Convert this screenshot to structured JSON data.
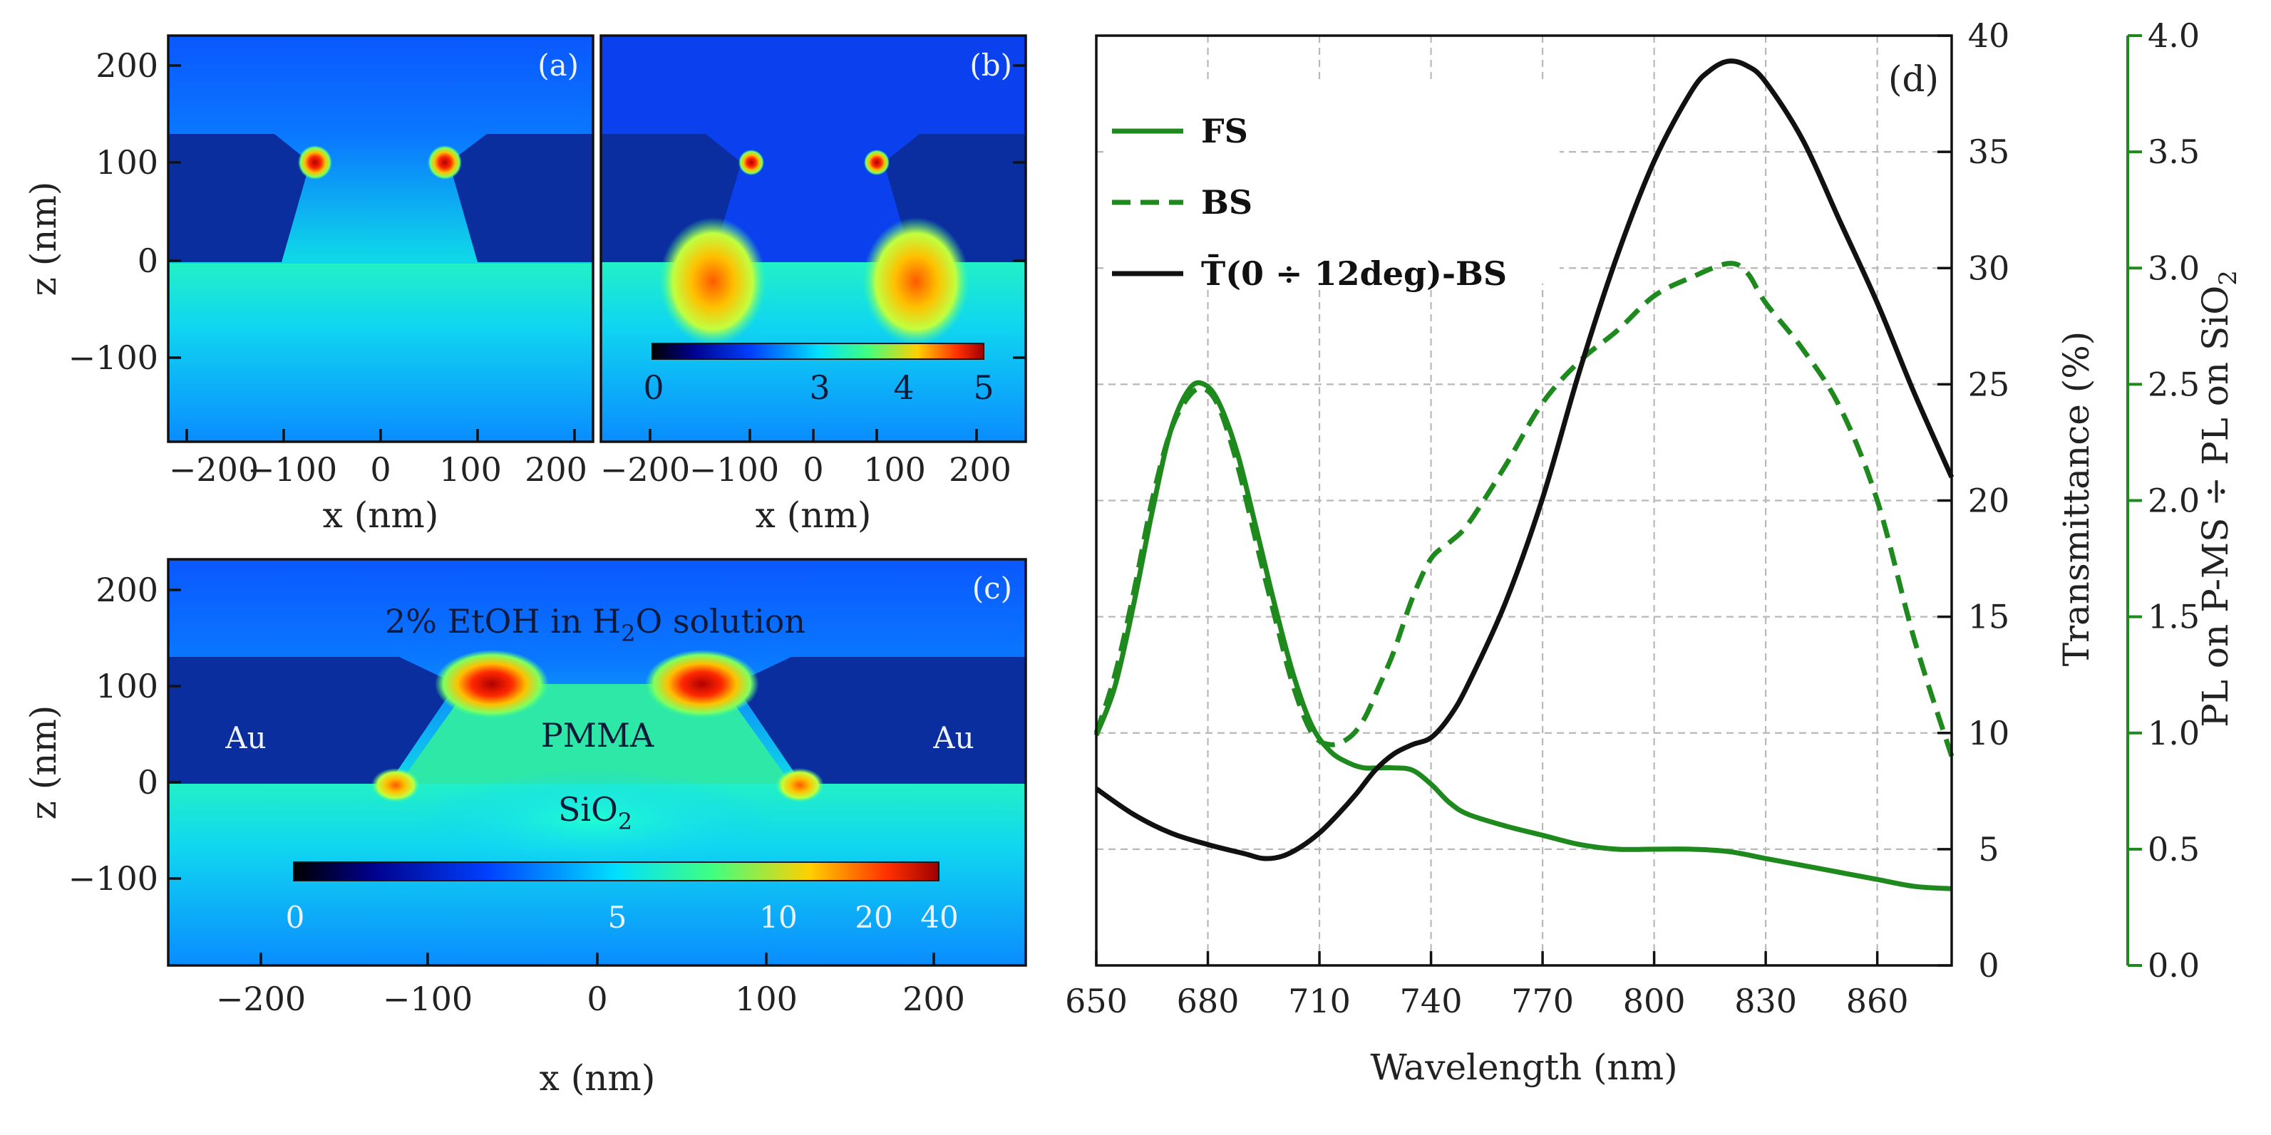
{
  "maps": {
    "a": {
      "label": "(a)",
      "ylabel": "z (nm)",
      "xlabel": "x (nm)",
      "xticks": [
        "−200",
        "−100",
        "0",
        "100",
        "200"
      ],
      "yticks": [
        "200",
        "100",
        "0",
        "−100"
      ]
    },
    "b": {
      "label": "(b)",
      "xlabel": "x (nm)",
      "xticks": [
        "−200",
        "−100",
        "0",
        "100",
        "200"
      ],
      "colorbar_ticks": [
        "0",
        "3",
        "4",
        "5"
      ]
    },
    "c": {
      "label": "(c)",
      "ylabel": "z (nm)",
      "xlabel": "x (nm)",
      "xticks": [
        "−200",
        "−100",
        "0",
        "100",
        "200"
      ],
      "yticks": [
        "200",
        "100",
        "0",
        "−100"
      ],
      "colorbar_ticks": [
        "0",
        "5",
        "10",
        "20",
        "40"
      ],
      "ann_solution_prefix": "2% EtOH in H",
      "ann_solution_sub": "2",
      "ann_solution_suffix": "O solution",
      "ann_au_left": "Au",
      "ann_au_right": "Au",
      "ann_pmma": "PMMA",
      "ann_sio2_main": "SiO",
      "ann_sio2_sub": "2"
    }
  },
  "chart_data": {
    "type": "line",
    "panel": "(d)",
    "xlabel": "Wavelength (nm)",
    "ylabel_left": "Transmittance (%)",
    "ylabel_right": "PL on P-MS ÷ PL on SiO",
    "ylabel_right_sub": "2",
    "xlim": [
      650,
      880
    ],
    "ylim_left": [
      0,
      40
    ],
    "ylim_right": [
      0,
      4
    ],
    "xticks": [
      650,
      680,
      710,
      740,
      770,
      800,
      830,
      860
    ],
    "yticks_left": [
      0,
      5,
      10,
      15,
      20,
      25,
      30,
      35,
      40
    ],
    "yticks_right": [
      "0.0",
      "0.5",
      "1.0",
      "1.5",
      "2.0",
      "2.5",
      "3.0",
      "3.5",
      "4.0"
    ],
    "colors": {
      "green": "#1e8a1e",
      "black": "#111111"
    },
    "legend": [
      {
        "name": "FS",
        "style": "solid",
        "color": "#1e8a1e"
      },
      {
        "name": "BS",
        "style": "dashed",
        "color": "#1e8a1e"
      },
      {
        "name": "T̄(0 ÷ 12deg)-BS",
        "style": "solid",
        "color": "#111111"
      }
    ],
    "series": [
      {
        "name": "FS",
        "axis": "right",
        "color": "#1e8a1e",
        "dash": false,
        "x": [
          650,
          655,
          660,
          665,
          670,
          675,
          679,
          683,
          688,
          693,
          698,
          703,
          708,
          713,
          718,
          722,
          726,
          730,
          735,
          740,
          745,
          750,
          760,
          770,
          780,
          790,
          800,
          810,
          820,
          830,
          840,
          850,
          860,
          870,
          880
        ],
        "y": [
          0.99,
          1.2,
          1.55,
          1.95,
          2.3,
          2.48,
          2.5,
          2.42,
          2.2,
          1.88,
          1.55,
          1.25,
          1.03,
          0.92,
          0.87,
          0.85,
          0.85,
          0.85,
          0.84,
          0.78,
          0.7,
          0.65,
          0.6,
          0.56,
          0.52,
          0.5,
          0.5,
          0.5,
          0.49,
          0.46,
          0.43,
          0.4,
          0.37,
          0.34,
          0.33
        ]
      },
      {
        "name": "BS",
        "axis": "right",
        "color": "#1e8a1e",
        "dash": true,
        "x": [
          650,
          655,
          660,
          665,
          670,
          675,
          679,
          683,
          688,
          693,
          698,
          703,
          708,
          713,
          718,
          722,
          726,
          730,
          735,
          740,
          745,
          750,
          760,
          770,
          780,
          790,
          800,
          810,
          820,
          825,
          830,
          840,
          850,
          860,
          870,
          880
        ],
        "y": [
          1.0,
          1.25,
          1.6,
          2.0,
          2.3,
          2.45,
          2.48,
          2.4,
          2.15,
          1.82,
          1.5,
          1.2,
          1.0,
          0.95,
          0.98,
          1.06,
          1.2,
          1.35,
          1.58,
          1.75,
          1.82,
          1.9,
          2.15,
          2.42,
          2.6,
          2.73,
          2.88,
          2.96,
          3.02,
          2.98,
          2.85,
          2.65,
          2.4,
          2.0,
          1.4,
          0.9
        ]
      },
      {
        "name": "T̄(0 ÷ 12deg)-BS",
        "axis": "left",
        "color": "#111111",
        "dash": false,
        "x": [
          650,
          660,
          670,
          680,
          690,
          695,
          700,
          705,
          710,
          715,
          720,
          725,
          730,
          735,
          740,
          745,
          750,
          760,
          770,
          780,
          790,
          800,
          810,
          815,
          820,
          825,
          830,
          840,
          850,
          860,
          870,
          880
        ],
        "y": [
          7.6,
          6.5,
          5.7,
          5.2,
          4.8,
          4.6,
          4.7,
          5.1,
          5.7,
          6.5,
          7.4,
          8.4,
          9.1,
          9.5,
          9.8,
          10.7,
          12.1,
          15.6,
          20.1,
          25.6,
          30.5,
          34.6,
          37.6,
          38.5,
          38.9,
          38.7,
          38.0,
          35.5,
          32.0,
          28.5,
          24.6,
          21.0
        ]
      }
    ]
  }
}
